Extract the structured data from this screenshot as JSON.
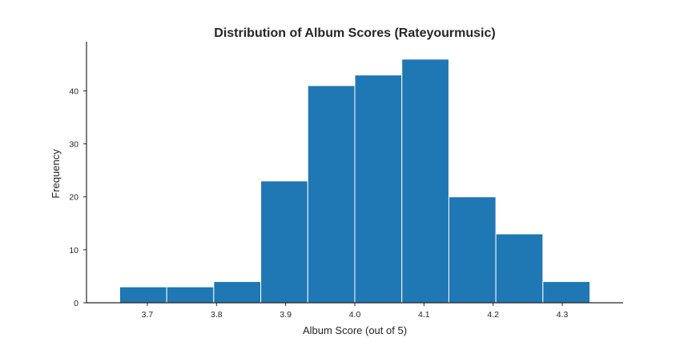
{
  "chart_data": {
    "type": "bar",
    "title": "Distribution of Album Scores (Rateyourmusic)",
    "xlabel": "Album Score (out of 5)",
    "ylabel": "Frequency",
    "bin_edges": [
      3.66,
      3.728,
      3.796,
      3.864,
      3.932,
      4.0,
      4.068,
      4.136,
      4.204,
      4.272,
      4.34
    ],
    "values": [
      3,
      3,
      4,
      23,
      41,
      43,
      46,
      20,
      13,
      4
    ],
    "xlim": [
      3.612,
      4.388
    ],
    "ylim": [
      0,
      49.3
    ],
    "xticks": [
      3.7,
      3.8,
      3.9,
      4.0,
      4.1,
      4.2,
      4.3
    ],
    "xtick_labels": [
      "3.7",
      "3.8",
      "3.9",
      "4.0",
      "4.1",
      "4.2",
      "4.3"
    ],
    "yticks": [
      0,
      10,
      20,
      30,
      40
    ],
    "ytick_labels": [
      "0",
      "10",
      "20",
      "30",
      "40"
    ],
    "grid": false,
    "legend": "none",
    "bar_color": "#1f77b4"
  }
}
